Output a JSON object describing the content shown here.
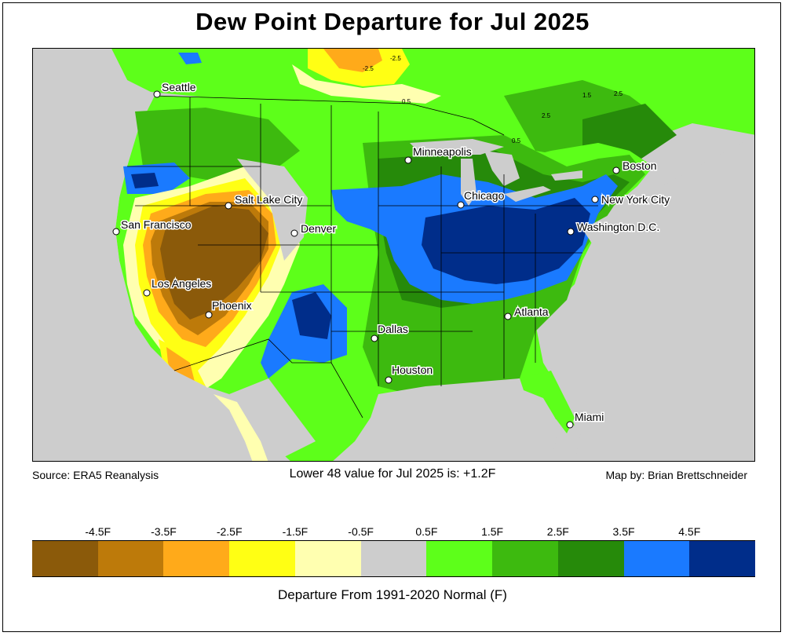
{
  "title": "Dew Point Departure for Jul 2025",
  "source": "Source: ERA5 Reanalysis",
  "lower48": "Lower 48 value for Jul 2025 is: +1.2F",
  "credit": "Map by: Brian Brettschneider",
  "legend": {
    "ticks": [
      "-4.5F",
      "-3.5F",
      "-2.5F",
      "-1.5F",
      "-0.5F",
      "0.5F",
      "1.5F",
      "2.5F",
      "3.5F",
      "4.5F"
    ],
    "colors": [
      "#8b5a0a",
      "#bd7a0a",
      "#ffaa1a",
      "#ffff14",
      "#ffffb0",
      "#cdcdcd",
      "#5dff1a",
      "#3dba0f",
      "#268a0a",
      "#1a7aff",
      "#002d8a"
    ],
    "label": "Departure From 1991-2020 Normal (F)"
  },
  "cities": [
    {
      "name": "Seattle"
    },
    {
      "name": "Minneapolis"
    },
    {
      "name": "Boston"
    },
    {
      "name": "Salt Lake City"
    },
    {
      "name": "Chicago"
    },
    {
      "name": "New York City"
    },
    {
      "name": "San Francisco"
    },
    {
      "name": "Denver"
    },
    {
      "name": "Washington D.C."
    },
    {
      "name": "Los Angeles"
    },
    {
      "name": "Phoenix"
    },
    {
      "name": "Atlanta"
    },
    {
      "name": "Dallas"
    },
    {
      "name": "Houston"
    },
    {
      "name": "Miami"
    }
  ],
  "contour_labels": [
    "-2.5",
    "-2.5",
    "0.5",
    "2.5",
    "1.5",
    "0.5",
    "2.5"
  ]
}
